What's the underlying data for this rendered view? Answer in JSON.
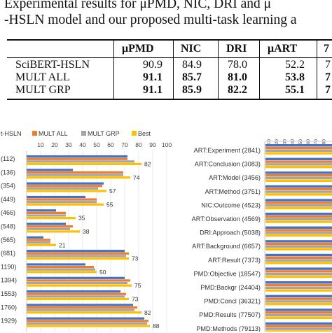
{
  "caption": {
    "line1": "Experimental results for μPMD, NIC, DRI and μ",
    "line2": "-HSLN model and our proposed multi-task learning a"
  },
  "table": {
    "headers": [
      "μPMD",
      "NIC",
      "DRI",
      "μART",
      "7"
    ],
    "rows": [
      {
        "label": "SciBERT-HSLN",
        "values": [
          "90.9",
          "84.9",
          "78.0",
          "52.2",
          "7"
        ],
        "bold": false
      },
      {
        "label": "MULT ALL",
        "values": [
          "91.1",
          "85.7",
          "81.0",
          "53.8",
          "7"
        ],
        "bold": true
      },
      {
        "label": "MULT GRP",
        "values": [
          "91.1",
          "85.9",
          "82.2",
          "55.1",
          "7"
        ],
        "bold": true
      }
    ]
  },
  "chart_data": [
    {
      "type": "bar",
      "orientation": "horizontal",
      "series": [
        {
          "name": "t-HSLN",
          "color": "#4472c4"
        },
        {
          "name": "MULT ALL",
          "color": "#ed7d31"
        },
        {
          "name": "MULT GRP",
          "color": "#a5a5a5"
        },
        {
          "name": "Best",
          "color": "#ffc000"
        }
      ],
      "xlim": [
        0,
        100
      ],
      "ticks": [
        "10",
        "20",
        "30",
        "40",
        "50",
        "60",
        "70",
        "80",
        "90",
        "100"
      ],
      "categories": [
        "(112)",
        "(136)",
        "(354)",
        "(449)",
        "(466)",
        "(548)",
        "(565)",
        "(681)",
        "1190)",
        "1394)",
        "1553)",
        "1760)",
        "1929)"
      ],
      "values": [
        [
          72,
          72,
          77,
          82
        ],
        [
          33,
          69,
          69,
          74
        ],
        [
          55,
          54,
          51,
          57
        ],
        [
          42,
          50,
          50,
          55
        ],
        [
          21,
          28,
          28,
          35
        ],
        [
          28,
          33,
          31,
          38
        ],
        [
          12,
          17,
          17,
          21
        ],
        [
          70,
          73,
          71,
          73
        ],
        [
          42,
          48,
          49,
          50
        ],
        [
          70,
          74,
          72,
          75
        ],
        [
          67,
          71,
          70,
          73
        ],
        [
          76,
          79,
          77,
          82
        ],
        [
          84,
          87,
          86,
          88
        ]
      ],
      "data_labels": [
        "82",
        "74",
        "57",
        "55",
        "35",
        "38",
        "21",
        "73",
        "50",
        "75",
        "73",
        "82",
        "88"
      ]
    },
    {
      "type": "bar",
      "orientation": "horizontal",
      "ticks": [
        "10",
        "20",
        "30",
        "40",
        "50",
        "60",
        "70",
        "80"
      ],
      "categories": [
        "ART:Experiment (2841)",
        "ART:Conclusion (3083)",
        "ART:Model (3456)",
        "ART:Method (3751)",
        "NIC:Outcome (4523)",
        "ART:Observation (4569)",
        "DRI:Approach (5038)",
        "ART:Background (6657)",
        "ART:Result (7373)",
        "PMD:Objective (18547)",
        "PMD:Backgr (24404)",
        "PMD:Concl (36321)",
        "PMD:Results (77507)",
        "PMD:Methods (79113)"
      ]
    }
  ]
}
